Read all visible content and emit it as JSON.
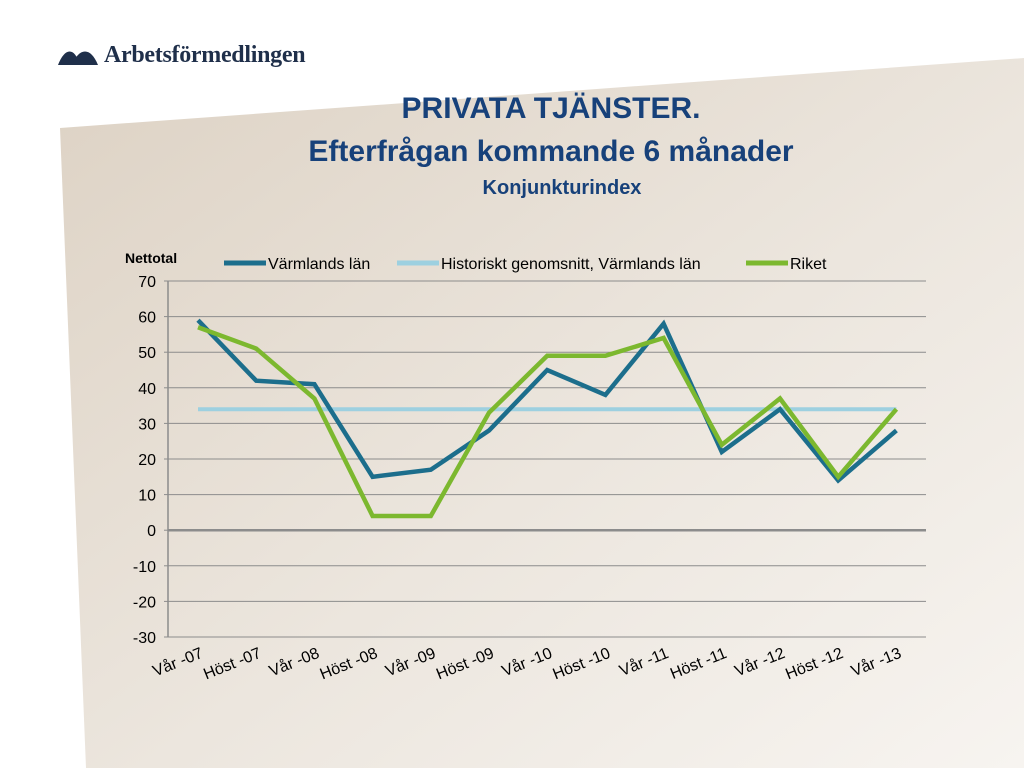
{
  "logo": {
    "text": "Arbetsförmedlingen"
  },
  "title": {
    "line1": "PRIVATA TJÄNSTER.",
    "line2": "Efterfrågan kommande 6 månader",
    "line3": "Konjunkturindex"
  },
  "colors": {
    "title": "#17417a",
    "series_varmland": "#1c6e8c",
    "series_historic": "#9dd0e0",
    "series_riket": "#7cb82f"
  },
  "chart_data": {
    "type": "line",
    "ylabel": "Nettotal",
    "ylim": [
      -30,
      70
    ],
    "yticks": [
      70,
      60,
      50,
      40,
      30,
      20,
      10,
      0,
      -10,
      -20,
      -30
    ],
    "grid": true,
    "legend_position": "top",
    "categories": [
      "Vår -07",
      "Höst -07",
      "Vår -08",
      "Höst -08",
      "Vår -09",
      "Höst -09",
      "Vår -10",
      "Höst -10",
      "Vår -11",
      "Höst -11",
      "Vår -12",
      "Höst -12",
      "Vår -13"
    ],
    "series": [
      {
        "name": "Värmlands län",
        "color": "#1c6e8c",
        "values": [
          59,
          42,
          41,
          15,
          17,
          28,
          45,
          38,
          58,
          22,
          34,
          14,
          28
        ]
      },
      {
        "name": "Historiskt genomsnitt, Värmlands län",
        "color": "#9dd0e0",
        "values": [
          34,
          34,
          34,
          34,
          34,
          34,
          34,
          34,
          34,
          34,
          34,
          34,
          34
        ]
      },
      {
        "name": "Riket",
        "color": "#7cb82f",
        "values": [
          57,
          51,
          37,
          4,
          4,
          33,
          49,
          49,
          54,
          24,
          37,
          15,
          34
        ]
      }
    ]
  }
}
